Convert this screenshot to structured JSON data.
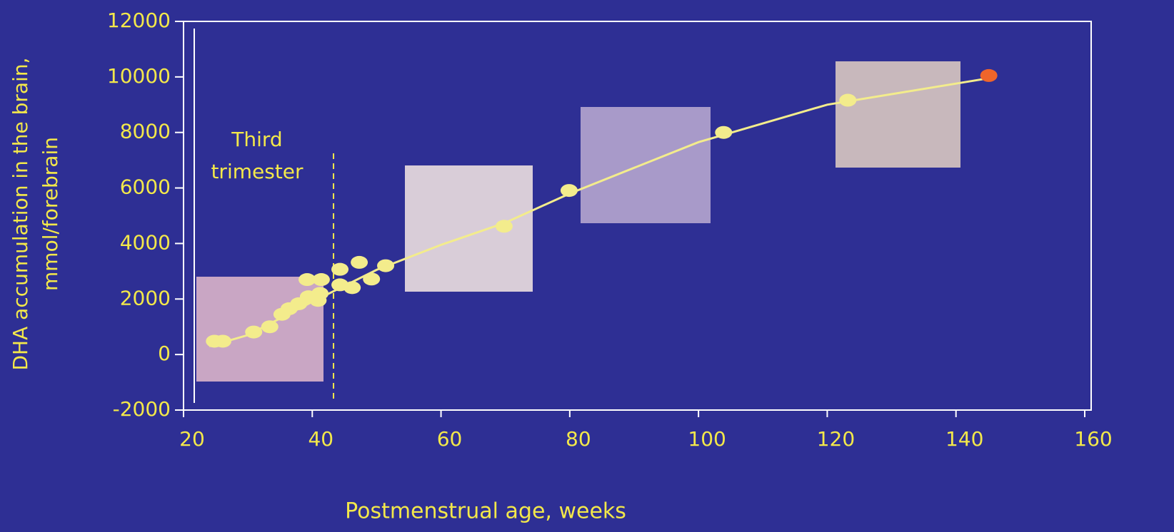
{
  "chart_data": {
    "type": "scatter",
    "x_label": "Postmenstrual age, weeks",
    "y_label": [
      "DHA accumulation in the brain,",
      "mmol/forebrain"
    ],
    "xlim": [
      20,
      161
    ],
    "ylim": [
      -2000,
      12000
    ],
    "xticks": [
      20,
      40,
      60,
      80,
      100,
      120,
      140,
      160
    ],
    "yticks": [
      -2000,
      0,
      2000,
      4000,
      6000,
      8000,
      10000,
      12000
    ],
    "series": [
      {
        "color": "#f3ec8c",
        "x": [
          24.8,
          26.1,
          30.9,
          33.4,
          35.3,
          36.4,
          37.9,
          39.2,
          39.4,
          40.9,
          41.2,
          41.4,
          44.3,
          44.3,
          46.2,
          47.3,
          49.2,
          51.4,
          69.8,
          79.9,
          103.9,
          123.2
        ],
        "values": [
          480,
          480,
          810,
          1000,
          1450,
          1650,
          1830,
          2700,
          2080,
          1950,
          2200,
          2700,
          3070,
          2510,
          2410,
          3320,
          2720,
          3200,
          4620,
          5910,
          8000,
          9160
        ]
      },
      {
        "color": "#f0652a",
        "x": [
          145.1
        ],
        "values": [
          10050
        ]
      }
    ],
    "trend": {
      "color": "#f3ec8c",
      "x": [
        24,
        30,
        40,
        50,
        60,
        70,
        80,
        100,
        120,
        145
      ],
      "values": [
        300,
        700,
        1900,
        3050,
        3950,
        4750,
        5800,
        7650,
        9000,
        9950
      ]
    },
    "annotation": {
      "lines": [
        "Third",
        "trimester"
      ],
      "x": 43.3
    }
  }
}
